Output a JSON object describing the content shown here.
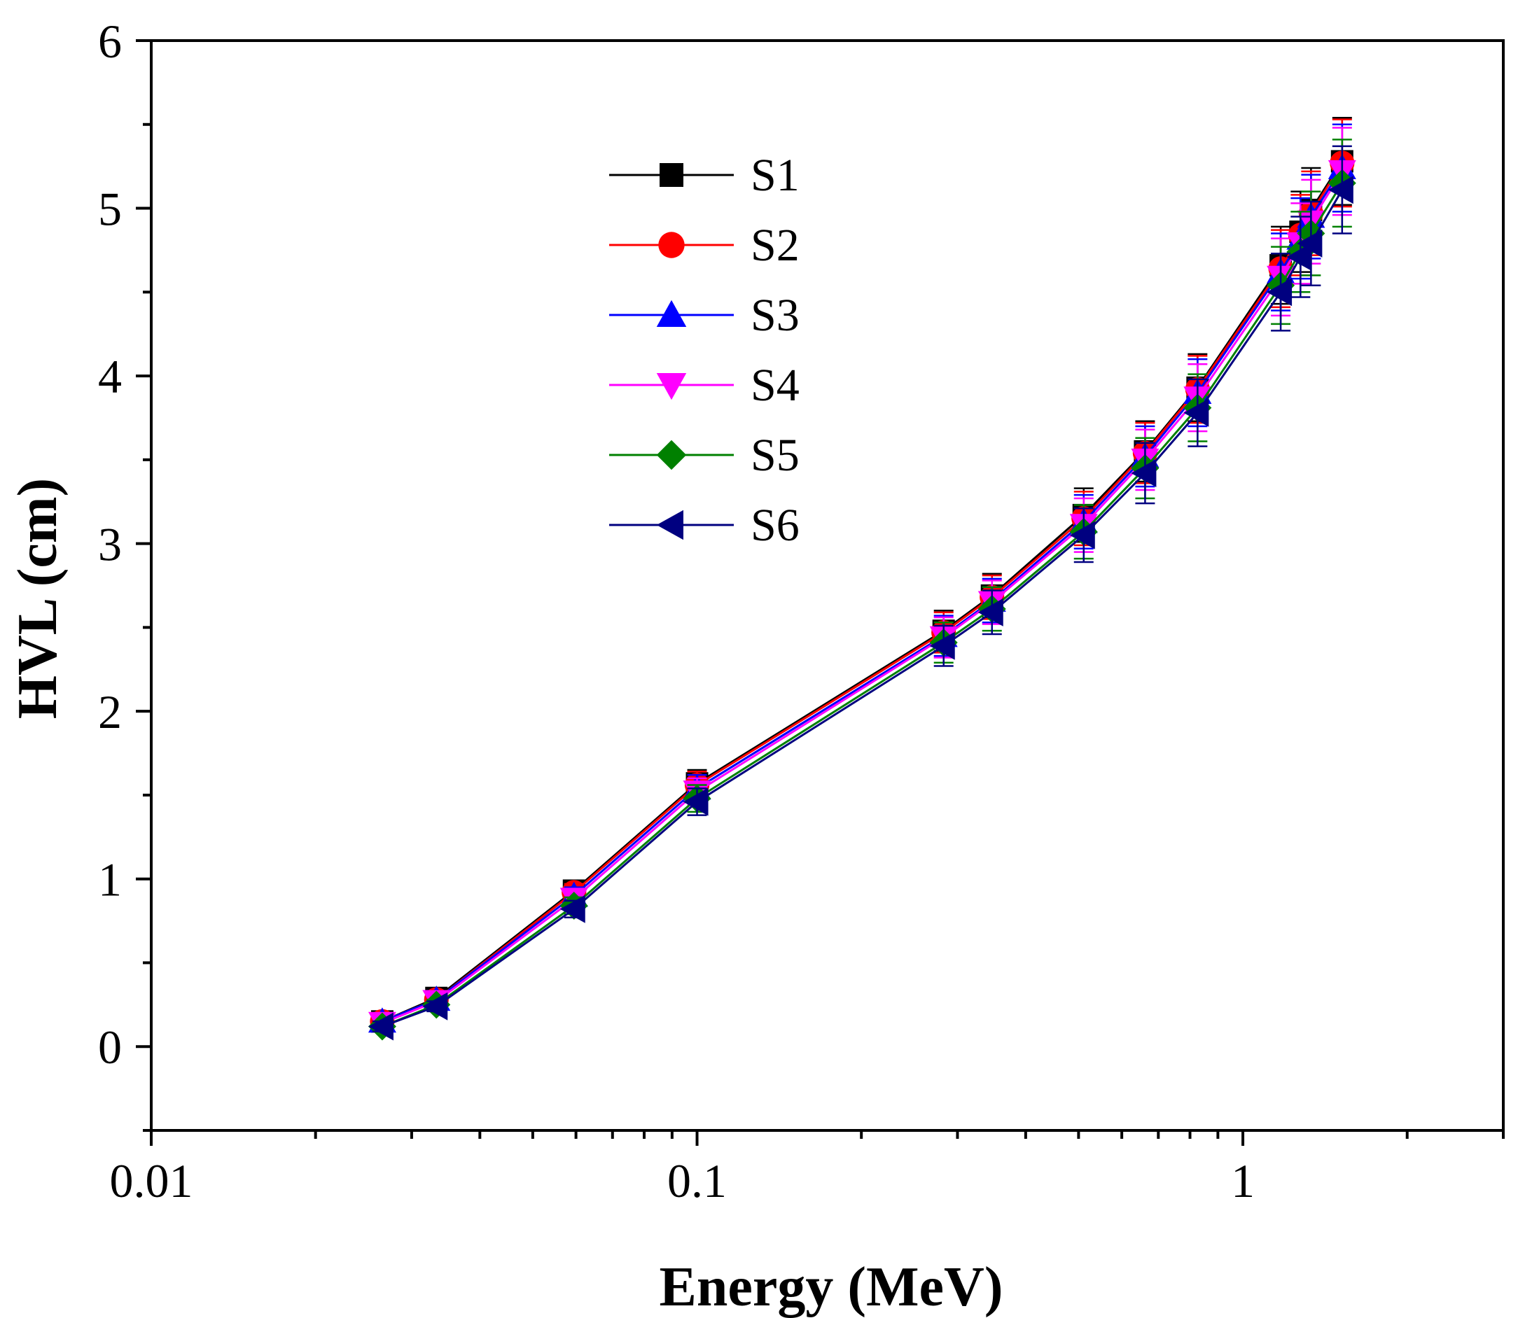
{
  "chart_data": {
    "type": "line",
    "xlabel": "Energy (MeV)",
    "ylabel": "HVL (cm)",
    "xscale": "log",
    "xlim": [
      0.01,
      3
    ],
    "ylim": [
      -0.5,
      6
    ],
    "xticks": [
      {
        "value": 0.01,
        "label": "0.01"
      },
      {
        "value": 0.1,
        "label": "0.1"
      },
      {
        "value": 1,
        "label": "1"
      }
    ],
    "yticks": [
      {
        "value": 0,
        "label": "0"
      },
      {
        "value": 1,
        "label": "1"
      },
      {
        "value": 2,
        "label": "2"
      },
      {
        "value": 3,
        "label": "3"
      },
      {
        "value": 4,
        "label": "4"
      },
      {
        "value": 5,
        "label": "5"
      },
      {
        "value": 6,
        "label": "6"
      }
    ],
    "x": [
      0.0265,
      0.0333,
      0.0595,
      0.1,
      0.283,
      0.347,
      0.511,
      0.662,
      0.826,
      1.173,
      1.275,
      1.333,
      1.52
    ],
    "legend_position": "top-center",
    "series": [
      {
        "name": "S1",
        "color": "#000000",
        "marker": "square",
        "values": [
          0.15,
          0.29,
          0.93,
          1.57,
          2.48,
          2.69,
          3.17,
          3.55,
          3.93,
          4.66,
          4.86,
          4.99,
          5.28
        ],
        "errors": [
          0.03,
          0.03,
          0.05,
          0.08,
          0.12,
          0.13,
          0.16,
          0.18,
          0.2,
          0.23,
          0.24,
          0.25,
          0.26
        ]
      },
      {
        "name": "S2",
        "color": "#ff0000",
        "marker": "circle",
        "values": [
          0.15,
          0.28,
          0.92,
          1.56,
          2.47,
          2.68,
          3.15,
          3.54,
          3.92,
          4.64,
          4.84,
          4.97,
          5.27
        ],
        "errors": [
          0.03,
          0.03,
          0.05,
          0.08,
          0.12,
          0.13,
          0.16,
          0.18,
          0.2,
          0.23,
          0.24,
          0.25,
          0.26
        ]
      },
      {
        "name": "S3",
        "color": "#0000ff",
        "marker": "triangle-up",
        "values": [
          0.15,
          0.28,
          0.9,
          1.54,
          2.45,
          2.66,
          3.13,
          3.52,
          3.9,
          4.62,
          4.82,
          4.95,
          5.24
        ],
        "errors": [
          0.03,
          0.03,
          0.05,
          0.08,
          0.12,
          0.13,
          0.16,
          0.18,
          0.2,
          0.23,
          0.24,
          0.25,
          0.26
        ]
      },
      {
        "name": "S4",
        "color": "#ff00ff",
        "marker": "triangle-down",
        "values": [
          0.14,
          0.27,
          0.88,
          1.52,
          2.44,
          2.65,
          3.11,
          3.5,
          3.87,
          4.59,
          4.79,
          4.92,
          5.22
        ],
        "errors": [
          0.03,
          0.03,
          0.05,
          0.08,
          0.12,
          0.13,
          0.16,
          0.18,
          0.2,
          0.23,
          0.24,
          0.25,
          0.26
        ]
      },
      {
        "name": "S5",
        "color": "#008000",
        "marker": "diamond",
        "values": [
          0.12,
          0.25,
          0.84,
          1.48,
          2.41,
          2.61,
          3.07,
          3.45,
          3.81,
          4.54,
          4.74,
          4.85,
          5.15
        ],
        "errors": [
          0.03,
          0.03,
          0.05,
          0.08,
          0.12,
          0.13,
          0.16,
          0.18,
          0.2,
          0.23,
          0.24,
          0.25,
          0.26
        ]
      },
      {
        "name": "S6",
        "color": "#000080",
        "marker": "triangle-left",
        "values": [
          0.12,
          0.24,
          0.82,
          1.46,
          2.39,
          2.59,
          3.05,
          3.42,
          3.78,
          4.5,
          4.71,
          4.79,
          5.11
        ],
        "errors": [
          0.03,
          0.03,
          0.05,
          0.08,
          0.12,
          0.13,
          0.16,
          0.18,
          0.2,
          0.23,
          0.24,
          0.25,
          0.26
        ]
      }
    ]
  }
}
